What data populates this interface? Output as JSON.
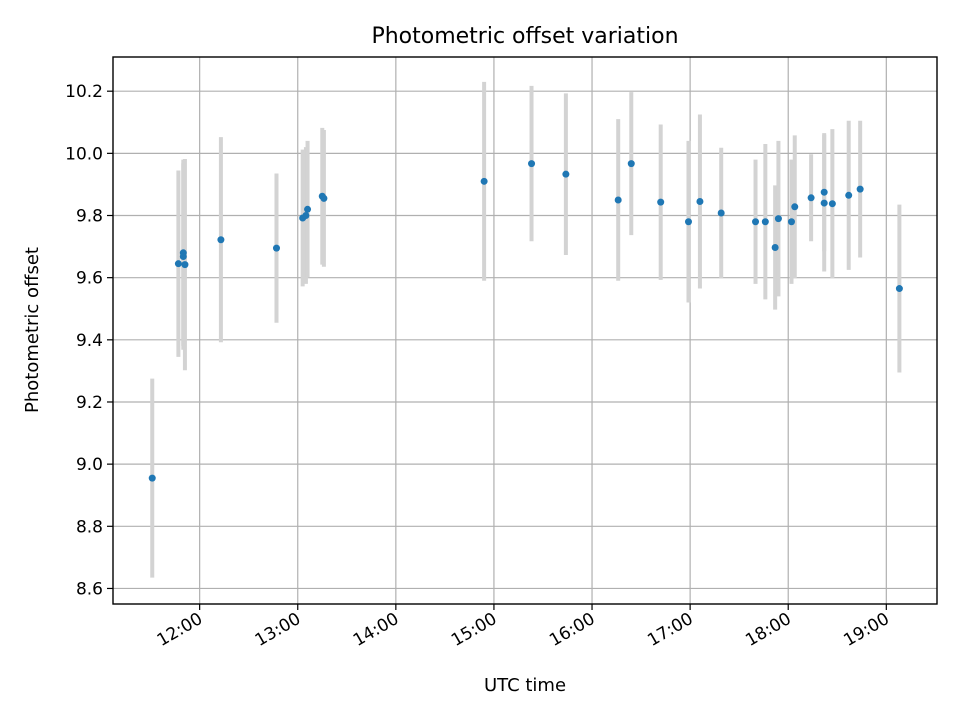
{
  "chart_data": {
    "type": "scatter",
    "title": "Photometric offset variation",
    "xlabel": "UTC time",
    "ylabel": "Photometric offset",
    "xlim": [
      "11:07",
      "19:31"
    ],
    "ylim": [
      8.55,
      10.31
    ],
    "xticks": [
      "12:00",
      "13:00",
      "14:00",
      "15:00",
      "16:00",
      "17:00",
      "18:00",
      "19:00"
    ],
    "yticks": [
      "8.6",
      "8.8",
      "9.0",
      "9.2",
      "9.4",
      "9.6",
      "9.8",
      "10.0",
      "10.2"
    ],
    "grid": true,
    "colors": {
      "points": "#1f77b4",
      "errorbars": "#d3d3d3"
    },
    "points": [
      {
        "time": "11:31",
        "y": 8.955,
        "yerr": 0.32
      },
      {
        "time": "11:47",
        "y": 9.645,
        "yerr": 0.3
      },
      {
        "time": "11:50",
        "y": 9.68,
        "yerr": 0.3
      },
      {
        "time": "11:50",
        "y": 9.668,
        "yerr": 0.3
      },
      {
        "time": "11:51",
        "y": 9.642,
        "yerr": 0.34
      },
      {
        "time": "12:13",
        "y": 9.722,
        "yerr": 0.33
      },
      {
        "time": "12:47",
        "y": 9.695,
        "yerr": 0.24
      },
      {
        "time": "13:03",
        "y": 9.792,
        "yerr": 0.22
      },
      {
        "time": "13:05",
        "y": 9.8,
        "yerr": 0.22
      },
      {
        "time": "13:06",
        "y": 9.82,
        "yerr": 0.22
      },
      {
        "time": "13:15",
        "y": 9.862,
        "yerr": 0.22
      },
      {
        "time": "13:16",
        "y": 9.855,
        "yerr": 0.22
      },
      {
        "time": "14:54",
        "y": 9.91,
        "yerr": 0.32
      },
      {
        "time": "15:23",
        "y": 9.967,
        "yerr": 0.25
      },
      {
        "time": "15:44",
        "y": 9.933,
        "yerr": 0.26
      },
      {
        "time": "16:16",
        "y": 9.85,
        "yerr": 0.26
      },
      {
        "time": "16:24",
        "y": 9.967,
        "yerr": 0.23
      },
      {
        "time": "16:42",
        "y": 9.843,
        "yerr": 0.25
      },
      {
        "time": "16:59",
        "y": 9.78,
        "yerr": 0.26
      },
      {
        "time": "17:06",
        "y": 9.845,
        "yerr": 0.28
      },
      {
        "time": "17:19",
        "y": 9.808,
        "yerr": 0.21
      },
      {
        "time": "17:40",
        "y": 9.78,
        "yerr": 0.2
      },
      {
        "time": "17:46",
        "y": 9.78,
        "yerr": 0.25
      },
      {
        "time": "17:52",
        "y": 9.697,
        "yerr": 0.2
      },
      {
        "time": "17:54",
        "y": 9.79,
        "yerr": 0.25
      },
      {
        "time": "18:02",
        "y": 9.78,
        "yerr": 0.2
      },
      {
        "time": "18:04",
        "y": 9.828,
        "yerr": 0.23
      },
      {
        "time": "18:14",
        "y": 9.857,
        "yerr": 0.14
      },
      {
        "time": "18:22",
        "y": 9.875,
        "yerr": 0.19
      },
      {
        "time": "18:22",
        "y": 9.84,
        "yerr": 0.22
      },
      {
        "time": "18:27",
        "y": 9.838,
        "yerr": 0.24
      },
      {
        "time": "18:37",
        "y": 9.865,
        "yerr": 0.24
      },
      {
        "time": "18:44",
        "y": 9.885,
        "yerr": 0.22
      },
      {
        "time": "19:08",
        "y": 9.565,
        "yerr": 0.27
      }
    ]
  }
}
